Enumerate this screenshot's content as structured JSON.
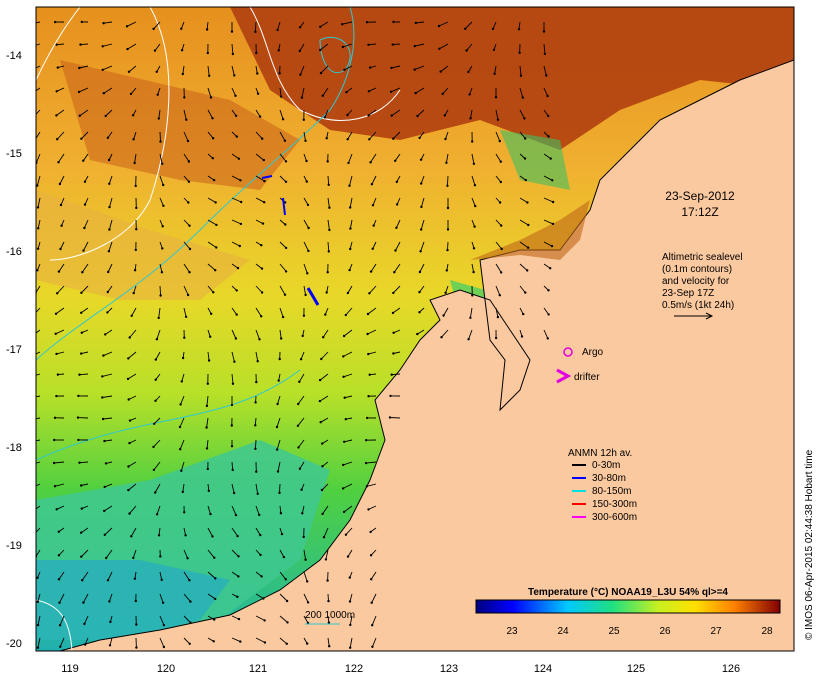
{
  "axes": {
    "lon_ticks": [
      "119",
      "120",
      "121",
      "122",
      "123",
      "124",
      "125",
      "126"
    ],
    "lat_ticks": [
      "-14",
      "-15",
      "-16",
      "-17",
      "-18",
      "-19",
      "-20"
    ]
  },
  "timestamp": {
    "line1": "23-Sep-2012",
    "line2": "17:12Z"
  },
  "altimetry": {
    "lines": [
      "Altimetric sealevel",
      "(0.1m contours)",
      "and velocity for",
      "23-Sep 17Z",
      "0.5m/s (1kt 24h)"
    ]
  },
  "legend_symbols": {
    "argo": "Argo",
    "drifter": "drifter"
  },
  "anmn": {
    "title": "ANMN 12h av.",
    "items": [
      {
        "label": "0-30m",
        "color": "#000000"
      },
      {
        "label": "30-80m",
        "color": "#0000ff"
      },
      {
        "label": "80-150m",
        "color": "#00e0e0"
      },
      {
        "label": "150-300m",
        "color": "#ff0000"
      },
      {
        "label": "300-600m",
        "color": "#ff00ff"
      }
    ]
  },
  "isobath_label": "200  1000m",
  "colorbar": {
    "title": "Temperature (°C) NOAA19_L3U 54% ql>=4",
    "ticks": [
      "23",
      "24",
      "25",
      "26",
      "27",
      "28"
    ]
  },
  "credit": "© IMOS 06-Apr-2015 02:44:38 Hobart time",
  "colors": {
    "land": "#fbc99f",
    "ocean_warm": "#e89a28",
    "ocean_cool": "#2ec0a0"
  }
}
